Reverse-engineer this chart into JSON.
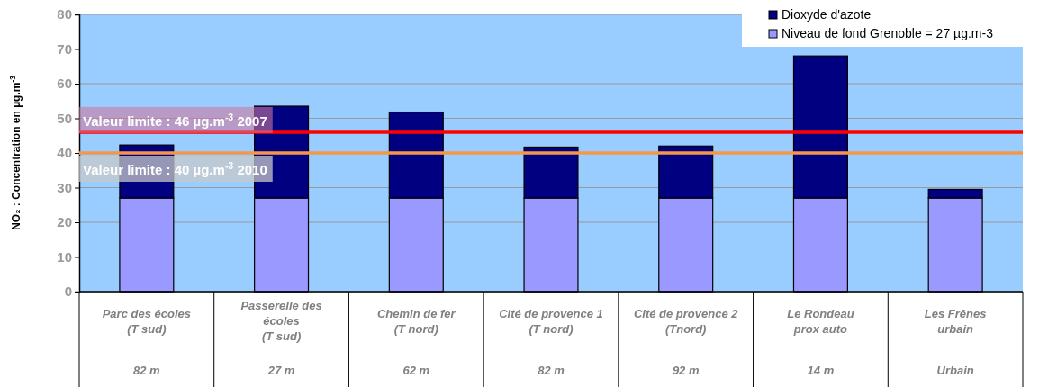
{
  "chart_data": {
    "type": "bar",
    "stacked": true,
    "ylabel": "NO₂ : Concentration en µg.m$^{-3}$",
    "categories": [
      "Parc des écoles\n(T sud)\n82 m",
      "Passerelle des\nécoles\n(T sud)\n27 m",
      "Chemin de fer\n(T nord)\n62 m",
      "Cité de provence 1\n(T nord)\n82 m",
      "Cité de provence 2\n(Tnord)\n92 m",
      "Le Rondeau\nprox auto\n14 m",
      "Les Frênes\nurbain\nUrbain"
    ],
    "series": [
      {
        "name": "Niveau de fond Grenoble = 27 µg.m-3",
        "color": "#9999ff",
        "values": [
          27,
          27,
          27,
          27,
          27,
          27,
          27
        ]
      },
      {
        "name": "Dioxyde d'azote",
        "color": "#000080",
        "values": [
          15.3,
          26.5,
          24.8,
          14.7,
          15,
          41,
          2.5
        ]
      }
    ],
    "ylim": [
      0,
      80
    ],
    "yticks": [
      0,
      10,
      20,
      30,
      40,
      50,
      60,
      70,
      80
    ],
    "grid": "y",
    "legend": "top right",
    "ref_lines": [
      {
        "axis": "y",
        "value": 46,
        "label": "Valeur limite : 46 µg.m$^{-3}$ 2007",
        "color": "#ff0000"
      },
      {
        "axis": "y",
        "value": 40,
        "label": "Valeur limite : 40 µg.m$^{-3}$ 2010",
        "color": "#f79646"
      }
    ]
  }
}
